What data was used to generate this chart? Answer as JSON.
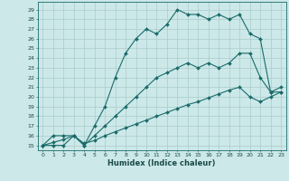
{
  "xlabel": "Humidex (Indice chaleur)",
  "bg_color": "#cce8e8",
  "grid_color": "#aacccc",
  "line_color": "#1a6b6b",
  "xlim": [
    -0.5,
    23.5
  ],
  "ylim": [
    14.5,
    29.8
  ],
  "xticks": [
    0,
    1,
    2,
    3,
    4,
    5,
    6,
    7,
    8,
    9,
    10,
    11,
    12,
    13,
    14,
    15,
    16,
    17,
    18,
    19,
    20,
    21,
    22,
    23
  ],
  "yticks": [
    15,
    16,
    17,
    18,
    19,
    20,
    21,
    22,
    23,
    24,
    25,
    26,
    27,
    28,
    29
  ],
  "line1_x": [
    0,
    1,
    2,
    3,
    4,
    5,
    6,
    7,
    8,
    9,
    10,
    11,
    12,
    13,
    14,
    15,
    16,
    17,
    18,
    19,
    20,
    21,
    22,
    23
  ],
  "line1_y": [
    15,
    16,
    16,
    16,
    15,
    17,
    19,
    22,
    24.5,
    26,
    27,
    26.5,
    27.5,
    29,
    28.5,
    28.5,
    28,
    28.5,
    28,
    28.5,
    26.5,
    26,
    20.5,
    21
  ],
  "line2_x": [
    0,
    1,
    2,
    3,
    4,
    5,
    6,
    7,
    8,
    9,
    10,
    11,
    12,
    13,
    14,
    15,
    16,
    17,
    18,
    19,
    20,
    21,
    22,
    23
  ],
  "line2_y": [
    15,
    15,
    15,
    16,
    15,
    16,
    17,
    18,
    19,
    20,
    21,
    22,
    22.5,
    23,
    23.5,
    23,
    23.5,
    23,
    23.5,
    24.5,
    24.5,
    22,
    20.5,
    20.5
  ],
  "line3_x": [
    0,
    1,
    2,
    3,
    4,
    5,
    6,
    7,
    8,
    9,
    10,
    11,
    12,
    13,
    14,
    15,
    16,
    17,
    18,
    19,
    20,
    21,
    22,
    23
  ],
  "line3_y": [
    15,
    15.3,
    15.6,
    16,
    15.2,
    15.5,
    16,
    16.4,
    16.8,
    17.2,
    17.6,
    18,
    18.4,
    18.8,
    19.2,
    19.5,
    19.9,
    20.3,
    20.7,
    21,
    20,
    19.5,
    20,
    20.5
  ]
}
